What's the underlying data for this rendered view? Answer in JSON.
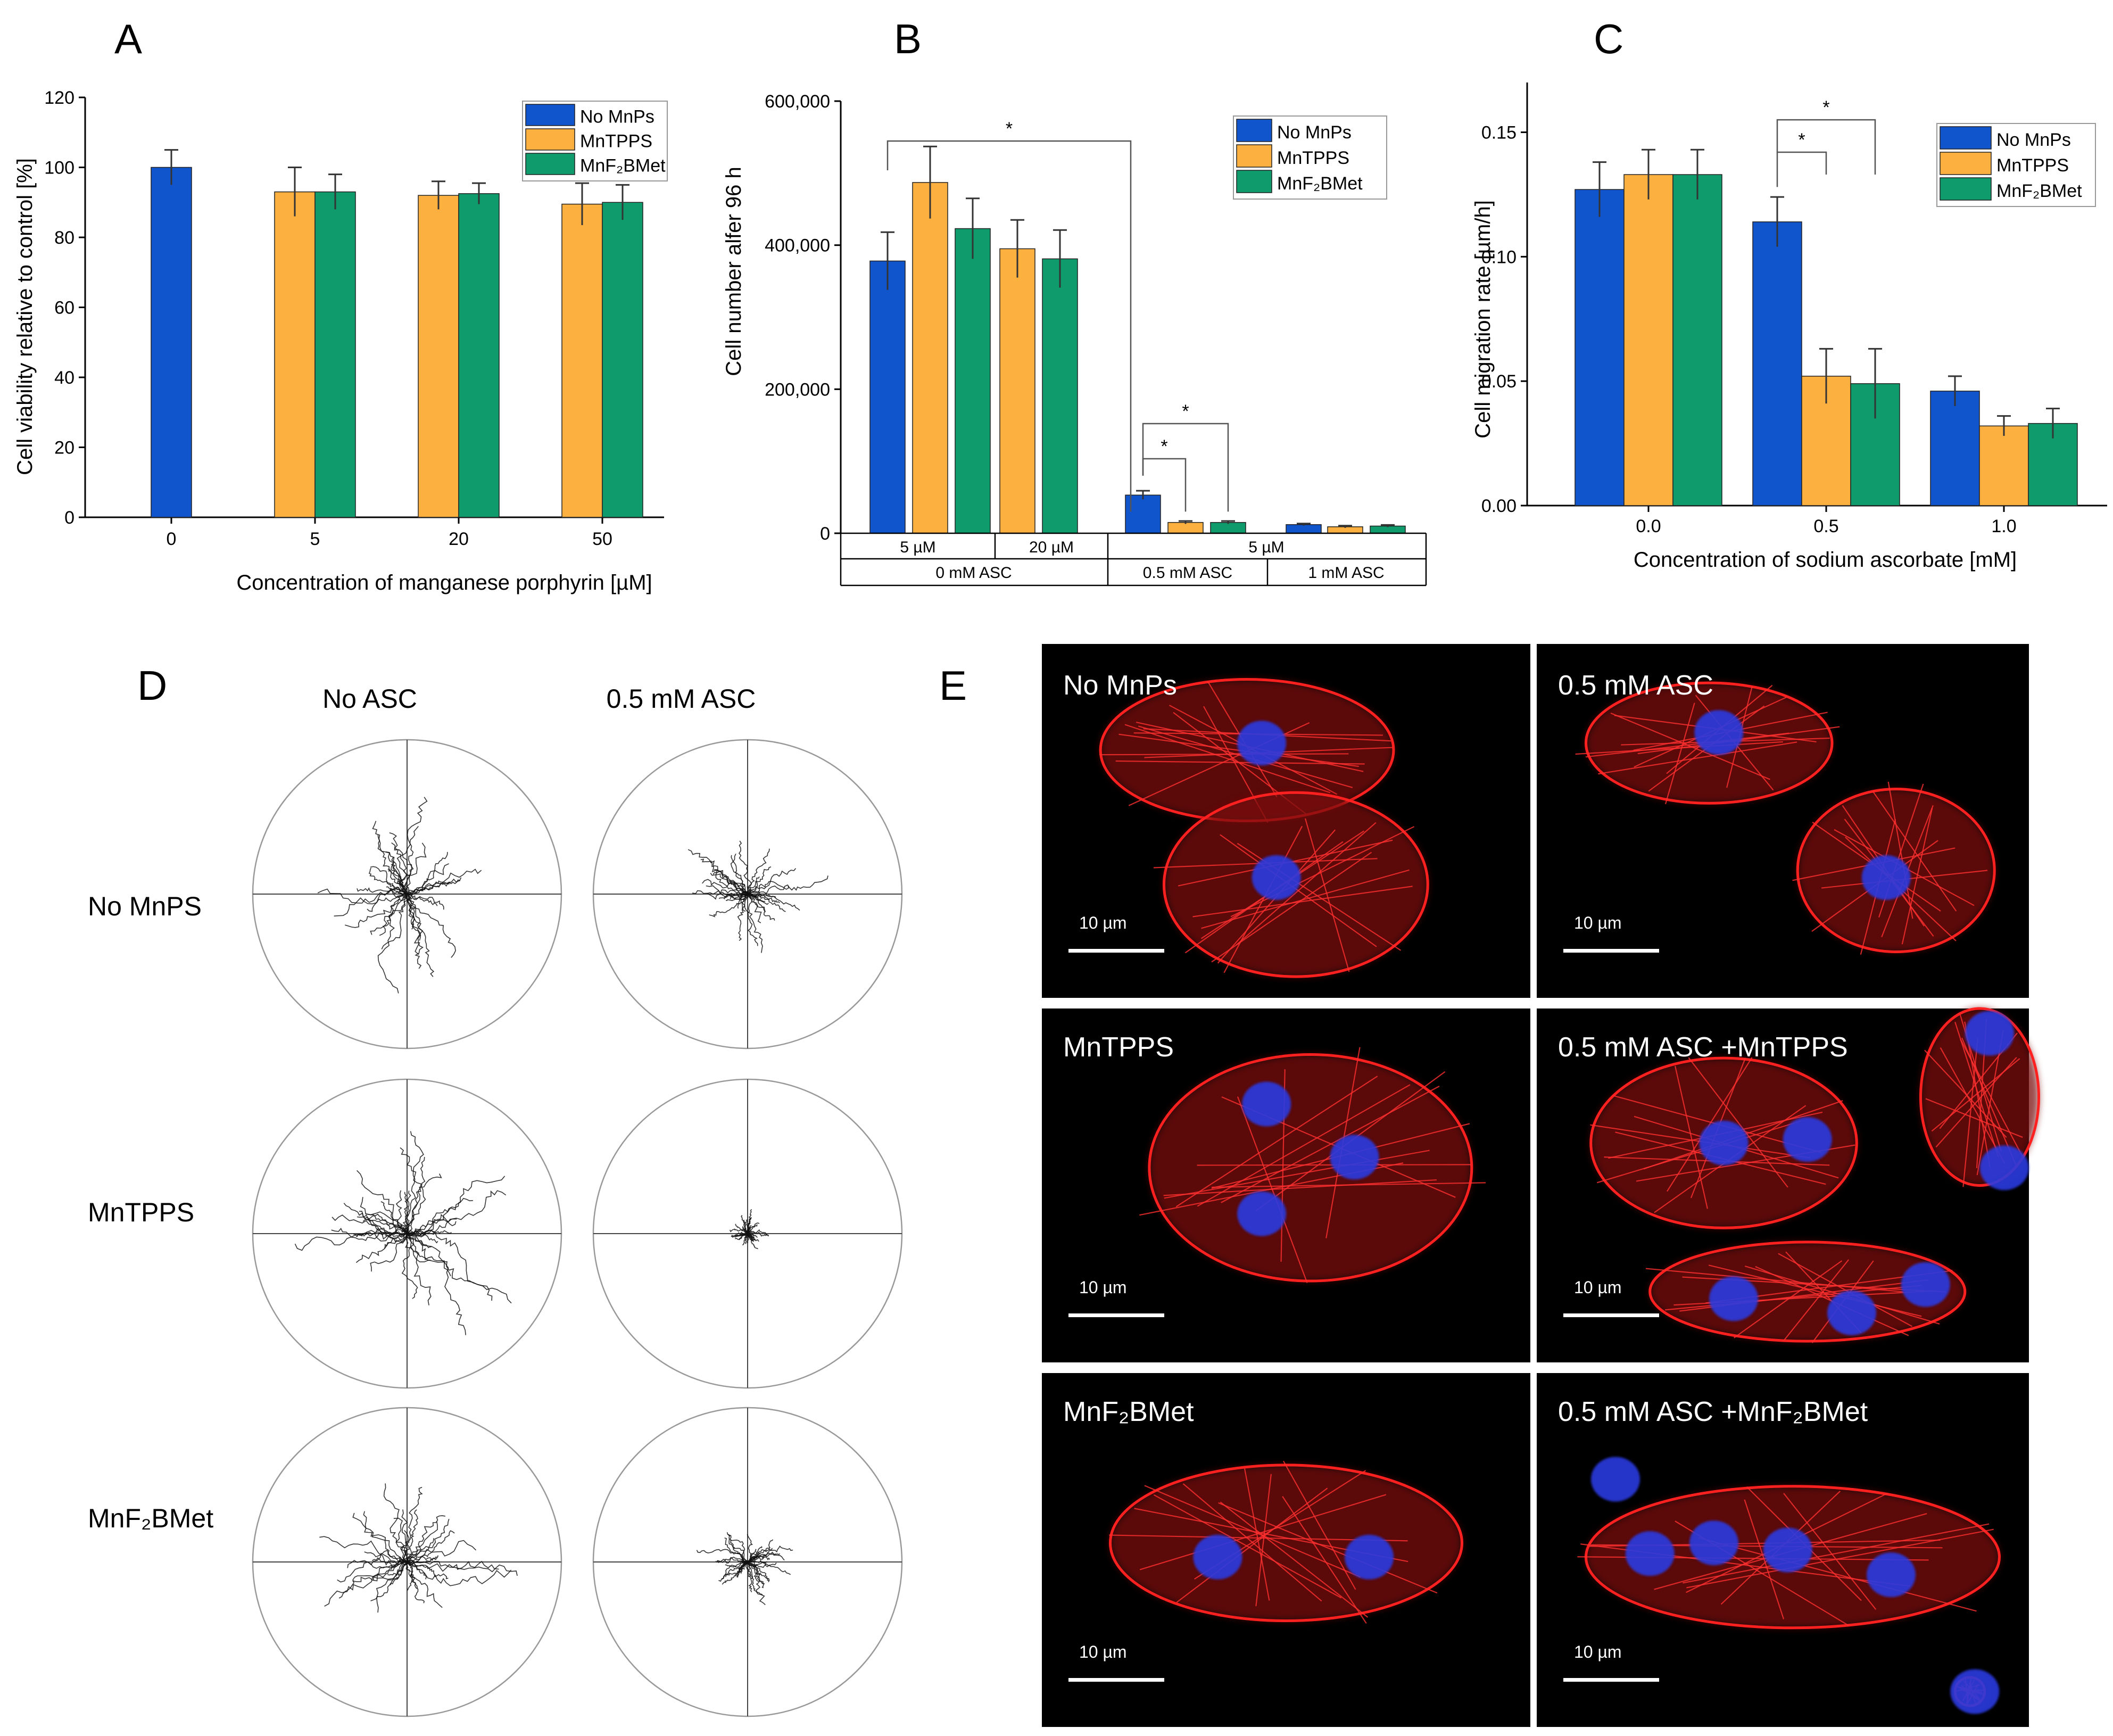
{
  "panels": {
    "A": {
      "letter": "A"
    },
    "B": {
      "letter": "B"
    },
    "C": {
      "letter": "C"
    },
    "D": {
      "letter": "D"
    },
    "E": {
      "letter": "E"
    }
  },
  "colors": {
    "no_mnps": "#1155cc",
    "mntpps": "#fbb040",
    "mnf2bmet": "#0f9b6b"
  },
  "legend_labels": [
    "No MnPs",
    "MnTPPS",
    "MnF₂BMet"
  ],
  "chart_data": [
    {
      "id": "A",
      "type": "bar",
      "xlabel": "Concentration of manganese porphyrin [µM]",
      "ylabel": "Cell viability relative to control [%]",
      "ylim": [
        0,
        120
      ],
      "yticks": [
        "0",
        "20",
        "40",
        "60",
        "80",
        "100",
        "120"
      ],
      "categories": [
        "0",
        "5",
        "20",
        "50"
      ],
      "legend_position": "top-right",
      "series": [
        {
          "name": "No MnPs",
          "values": [
            100,
            null,
            null,
            null
          ],
          "errors": [
            5,
            null,
            null,
            null
          ]
        },
        {
          "name": "MnTPPS",
          "values": [
            null,
            93,
            92,
            89.5
          ],
          "errors": [
            null,
            7,
            4,
            6
          ]
        },
        {
          "name": "MnF₂BMet",
          "values": [
            null,
            93,
            92.5,
            90
          ],
          "errors": [
            null,
            5,
            3,
            5
          ]
        }
      ]
    },
    {
      "id": "B",
      "type": "bar",
      "ylabel": "Cell number alfer 96 h",
      "ylim": [
        0,
        600000
      ],
      "yticks": [
        "0",
        "200,000",
        "400,000",
        "600,000"
      ],
      "legend_position": "top-right",
      "bars": [
        {
          "series": "No MnPs",
          "value": 378000,
          "error": 40000
        },
        {
          "series": "MnTPPS",
          "value": 487000,
          "error": 50000
        },
        {
          "series": "MnF₂BMet",
          "value": 423000,
          "error": 42000
        },
        {
          "series": "MnTPPS",
          "value": 395000,
          "error": 40000
        },
        {
          "series": "MnF₂BMet",
          "value": 381000,
          "error": 40000
        },
        {
          "series": "No MnPs",
          "value": 53000,
          "error": 6000
        },
        {
          "series": "MnTPPS",
          "value": 15000,
          "error": 2000
        },
        {
          "series": "MnF₂BMet",
          "value": 15000,
          "error": 2000
        },
        {
          "series": "No MnPs",
          "value": 12000,
          "error": 1500
        },
        {
          "series": "MnTPPS",
          "value": 9000,
          "error": 1500
        },
        {
          "series": "MnF₂BMet",
          "value": 10000,
          "error": 1500
        }
      ],
      "category_rows": [
        [
          "5 µM",
          "20 µM",
          "5 µM"
        ],
        [
          "0 mM ASC",
          "0.5 mM ASC",
          "1 mM ASC"
        ]
      ],
      "significance": [
        "*",
        "*",
        "*"
      ]
    },
    {
      "id": "C",
      "type": "bar",
      "xlabel": "Concentration of sodium ascorbate [mM]",
      "ylabel": "Cell migration rate [µm/h]",
      "ylim": [
        0,
        0.17
      ],
      "yticks": [
        "0.00",
        "0.05",
        "0.10",
        "0.15"
      ],
      "categories": [
        "0.0",
        "0.5",
        "1.0"
      ],
      "legend_position": "top-right",
      "series": [
        {
          "name": "No MnPs",
          "values": [
            0.127,
            0.114,
            0.046
          ],
          "errors": [
            0.011,
            0.01,
            0.006
          ]
        },
        {
          "name": "MnTPPS",
          "values": [
            0.133,
            0.052,
            0.032
          ],
          "errors": [
            0.01,
            0.011,
            0.004
          ]
        },
        {
          "name": "MnF₂BMet",
          "values": [
            0.133,
            0.049,
            0.033
          ],
          "errors": [
            0.01,
            0.014,
            0.006
          ]
        }
      ],
      "significance": [
        "*",
        "*"
      ]
    }
  ],
  "panel_d": {
    "columns": [
      "No ASC",
      "0.5 mM ASC"
    ],
    "rows": [
      "No MnPS",
      "MnTPPS",
      "MnF₂BMet"
    ],
    "spread": [
      [
        1.0,
        0.7
      ],
      [
        1.0,
        0.2
      ],
      [
        1.0,
        0.45
      ]
    ]
  },
  "panel_e": {
    "images": [
      {
        "label": "No MnPs",
        "scale": "10 µm"
      },
      {
        "label": "0.5 mM ASC",
        "scale": "10 µm"
      },
      {
        "label": "MnTPPS",
        "scale": "10 µm"
      },
      {
        "label": "0.5 mM ASC +MnTPPS",
        "scale": "10 µm"
      },
      {
        "label": "MnF₂BMet",
        "scale": "10 µm"
      },
      {
        "label": "0.5 mM ASC +MnF₂BMet",
        "scale": "10 µm"
      }
    ]
  }
}
